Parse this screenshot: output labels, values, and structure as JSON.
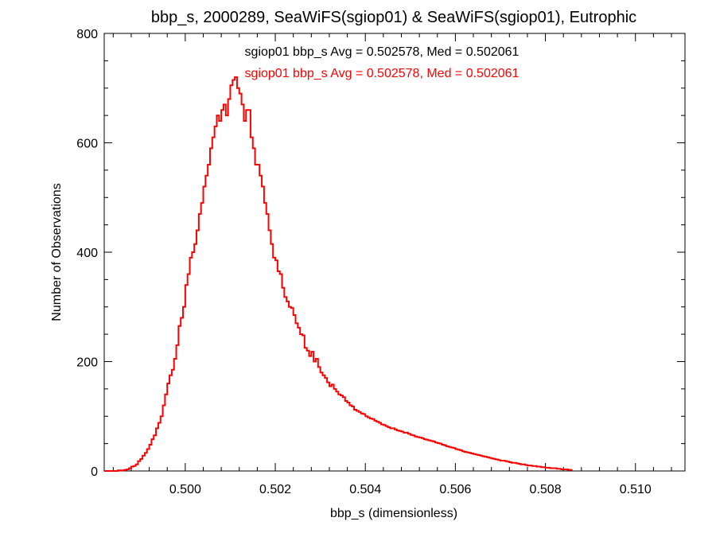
{
  "chart_data": {
    "type": "histogram",
    "title": "bbp_s, 2000289, SeaWiFS(sgiop01) & SeaWiFS(sgiop01), Eutrophic",
    "xlabel": "bbp_s (dimensionless)",
    "ylabel": "Number of Observations",
    "xlim": [
      0.4982,
      0.5111
    ],
    "ylim": [
      0,
      800
    ],
    "x_ticks": [
      "0.500",
      "0.502",
      "0.504",
      "0.506",
      "0.508",
      "0.510"
    ],
    "x_tick_values": [
      0.5,
      0.502,
      0.504,
      0.506,
      0.508,
      0.51
    ],
    "y_ticks": [
      "0",
      "200",
      "400",
      "600",
      "800"
    ],
    "y_tick_values": [
      0,
      200,
      400,
      600,
      800
    ],
    "grid": false,
    "annotations": [
      {
        "text": "sgiop01 bbp_s Avg = 0.502578, Med = 0.502061",
        "color": "#000000"
      },
      {
        "text": "sgiop01 bbp_s Avg = 0.502578, Med = 0.502061",
        "color": "#ff0000"
      }
    ],
    "series": [
      {
        "color": "#ff0000",
        "bin_width": 5e-05,
        "bin_start": 0.4985,
        "values": [
          1,
          1,
          1,
          2,
          3,
          5,
          8,
          9,
          12,
          18,
          22,
          28,
          33,
          40,
          48,
          58,
          65,
          78,
          88,
          100,
          120,
          140,
          160,
          175,
          185,
          205,
          230,
          265,
          280,
          300,
          340,
          360,
          390,
          400,
          415,
          440,
          470,
          490,
          520,
          540,
          560,
          590,
          610,
          630,
          650,
          640,
          660,
          670,
          650,
          680,
          705,
          715,
          720,
          700,
          690,
          670,
          640,
          660,
          660,
          610,
          590,
          560,
          560,
          540,
          520,
          490,
          470,
          440,
          415,
          390,
          385,
          365,
          360,
          335,
          318,
          310,
          300,
          298,
          285,
          270,
          262,
          250,
          248,
          225,
          220,
          210,
          218,
          200,
          205,
          190,
          180,
          175,
          170,
          162,
          155,
          158,
          150,
          145,
          140,
          138,
          135,
          128,
          125,
          120,
          118,
          112,
          110,
          108,
          105,
          104,
          100,
          98,
          96,
          95,
          92,
          90,
          88,
          85,
          84,
          82,
          80,
          78,
          78,
          76,
          74,
          73,
          72,
          70,
          70,
          68,
          66,
          65,
          63,
          62,
          61,
          60,
          58,
          57,
          56,
          55,
          54,
          52,
          51,
          50,
          48,
          47,
          45,
          44,
          43,
          42,
          40,
          39,
          38,
          36,
          35,
          34,
          33,
          32,
          31,
          30,
          29,
          28,
          27,
          26,
          25,
          24,
          23,
          22,
          21,
          20,
          19,
          19,
          18,
          17,
          16,
          15,
          15,
          14,
          13,
          12,
          12,
          11,
          10,
          10,
          9,
          9,
          8,
          8,
          7,
          7,
          6,
          6,
          5,
          5,
          5,
          4,
          4,
          3,
          3,
          3,
          2,
          2
        ]
      }
    ]
  }
}
